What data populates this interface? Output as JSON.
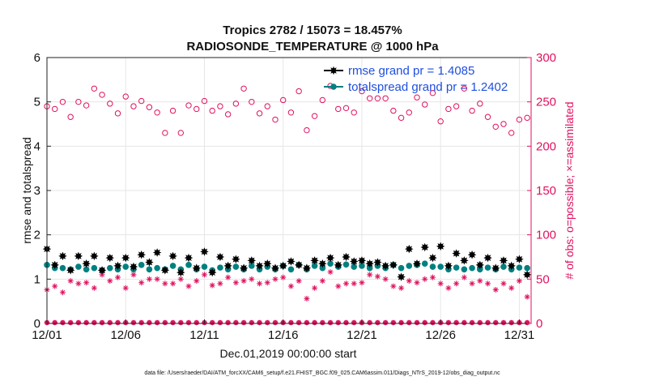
{
  "chart_data": {
    "type": "scatter",
    "title_line1": "Tropics 2782 / 15073 = 18.457%",
    "title_line2": "RADIOSONDE_TEMPERATURE @ 1000 hPa",
    "xlabel": "Dec.01,2019 00:00:00 start",
    "ylabel_left": "rmse and totalspread",
    "ylabel_right": "# of obs: o=possible; ×=assimilated",
    "footer": "data file: /Users/raeder/DAI/ATM_forcXX/CAM6_setup/f.e21.FHIST_BGC.f09_025.CAM6assim.011/Diags_NTrS_2019-12/obs_diag_output.nc",
    "x_ticks": [
      "12/01",
      "12/06",
      "12/11",
      "12/16",
      "12/21",
      "12/26",
      "12/31"
    ],
    "y_left_ticks": [
      "0",
      "1",
      "2",
      "3",
      "4",
      "5",
      "6"
    ],
    "y_right_ticks": [
      "0",
      "50",
      "100",
      "150",
      "200",
      "250",
      "300"
    ],
    "ylim_left": [
      0,
      6
    ],
    "ylim_right": [
      0,
      300
    ],
    "xlim": [
      0,
      30.75
    ],
    "colors": {
      "rmse": "#000000",
      "totalspread": "#008080",
      "obs": "#e0115f",
      "legend_text": "#1f4fe0"
    },
    "legend": [
      {
        "label": "rmse grand pr = 1.4085",
        "series": "rmse"
      },
      {
        "label": "totalspread grand pr = 1.2402",
        "series": "totalspread"
      }
    ],
    "series": [
      {
        "name": "rmse",
        "marker": "star",
        "x": [
          0,
          0.5,
          1,
          1.5,
          2,
          2.5,
          3,
          3.5,
          4,
          4.5,
          5,
          5.5,
          6,
          6.5,
          7,
          7.5,
          8,
          8.5,
          9,
          9.5,
          10,
          10.5,
          11,
          11.5,
          12,
          12.5,
          13,
          13.5,
          14,
          14.5,
          15,
          15.5,
          16,
          16.5,
          17,
          17.5,
          18,
          18.5,
          19,
          19.5,
          20,
          20.5,
          21,
          21.5,
          22,
          22.5,
          23,
          23.5,
          24,
          24.5,
          25,
          25.5,
          26,
          26.5,
          27,
          27.5,
          28,
          28.5,
          29,
          29.5,
          30,
          30.5
        ],
        "values": [
          1.68,
          1.32,
          1.52,
          1.2,
          1.52,
          1.35,
          1.52,
          1.2,
          1.48,
          1.3,
          1.48,
          1.28,
          1.55,
          1.38,
          1.6,
          1.2,
          1.52,
          1.15,
          1.48,
          1.25,
          1.62,
          1.15,
          1.5,
          1.3,
          1.45,
          1.25,
          1.42,
          1.3,
          1.35,
          1.25,
          1.3,
          1.4,
          1.32,
          1.25,
          1.42,
          1.35,
          1.48,
          1.32,
          1.5,
          1.4,
          1.42,
          1.35,
          1.38,
          1.3,
          1.32,
          1.05,
          1.68,
          1.35,
          1.72,
          1.48,
          1.74,
          1.3,
          1.58,
          1.42,
          1.55,
          1.32,
          1.48,
          1.25,
          1.42,
          1.3,
          1.45,
          1.1
        ]
      },
      {
        "name": "totalspread",
        "marker": "dot",
        "x": [
          0,
          0.5,
          1,
          1.5,
          2,
          2.5,
          3,
          3.5,
          4,
          4.5,
          5,
          5.5,
          6,
          6.5,
          7,
          7.5,
          8,
          8.5,
          9,
          9.5,
          10,
          10.5,
          11,
          11.5,
          12,
          12.5,
          13,
          13.5,
          14,
          14.5,
          15,
          15.5,
          16,
          16.5,
          17,
          17.5,
          18,
          18.5,
          19,
          19.5,
          20,
          20.5,
          21,
          21.5,
          22,
          22.5,
          23,
          23.5,
          24,
          24.5,
          25,
          25.5,
          26,
          26.5,
          27,
          27.5,
          28,
          28.5,
          29,
          29.5,
          30,
          30.5
        ],
        "values": [
          1.32,
          1.25,
          1.25,
          1.22,
          1.28,
          1.22,
          1.25,
          1.2,
          1.25,
          1.22,
          1.28,
          1.22,
          1.32,
          1.22,
          1.25,
          1.22,
          1.3,
          1.22,
          1.32,
          1.22,
          1.28,
          1.2,
          1.26,
          1.22,
          1.28,
          1.22,
          1.3,
          1.22,
          1.28,
          1.22,
          1.3,
          1.22,
          1.32,
          1.22,
          1.3,
          1.25,
          1.35,
          1.28,
          1.33,
          1.28,
          1.3,
          1.25,
          1.3,
          1.25,
          1.32,
          1.25,
          1.3,
          1.32,
          1.35,
          1.28,
          1.28,
          1.22,
          1.26,
          1.22,
          1.25,
          1.22,
          1.26,
          1.22,
          1.28,
          1.22,
          1.26,
          1.25
        ]
      },
      {
        "name": "obs_possible",
        "marker": "circle",
        "axis": "right",
        "x": [
          0,
          0.5,
          1,
          1.5,
          2,
          2.5,
          3,
          3.5,
          4,
          4.5,
          5,
          5.5,
          6,
          6.5,
          7,
          7.5,
          8,
          8.5,
          9,
          9.5,
          10,
          10.5,
          11,
          11.5,
          12,
          12.5,
          13,
          13.5,
          14,
          14.5,
          15,
          15.5,
          16,
          16.5,
          17,
          17.5,
          18,
          18.5,
          19,
          19.5,
          20,
          20.5,
          21,
          21.5,
          22,
          22.5,
          23,
          23.5,
          24,
          24.5,
          25,
          25.5,
          26,
          26.5,
          27,
          27.5,
          28,
          28.5,
          29,
          29.5,
          30,
          30.5
        ],
        "values": [
          245,
          242,
          250,
          233,
          250,
          246,
          265,
          258,
          248,
          237,
          256,
          245,
          251,
          244,
          238,
          215,
          240,
          215,
          246,
          242,
          251,
          240,
          245,
          236,
          248,
          265,
          250,
          237,
          245,
          230,
          252,
          238,
          262,
          218,
          234,
          252,
          268,
          242,
          243,
          238,
          262,
          254,
          254,
          254,
          240,
          232,
          238,
          255,
          247,
          260,
          228,
          242,
          245,
          265,
          240,
          248,
          233,
          222,
          225,
          215,
          230,
          232
        ]
      },
      {
        "name": "obs_assimilated",
        "marker": "asterisk",
        "axis": "right",
        "x": [
          0,
          0.5,
          1,
          1.5,
          2,
          2.5,
          3,
          3.5,
          4,
          4.5,
          5,
          5.5,
          6,
          6.5,
          7,
          7.5,
          8,
          8.5,
          9,
          9.5,
          10,
          10.5,
          11,
          11.5,
          12,
          12.5,
          13,
          13.5,
          14,
          14.5,
          15,
          15.5,
          16,
          16.5,
          17,
          17.5,
          18,
          18.5,
          19,
          19.5,
          20,
          20.5,
          21,
          21.5,
          22,
          22.5,
          23,
          23.5,
          24,
          24.5,
          25,
          25.5,
          26,
          26.5,
          27,
          27.5,
          28,
          28.5,
          29,
          29.5,
          30,
          30.5
        ],
        "values": [
          38,
          42,
          35,
          48,
          45,
          46,
          40,
          55,
          48,
          52,
          40,
          55,
          46,
          50,
          50,
          45,
          45,
          50,
          42,
          48,
          55,
          43,
          45,
          52,
          46,
          48,
          50,
          45,
          46,
          50,
          52,
          42,
          48,
          28,
          40,
          48,
          58,
          42,
          45,
          45,
          46,
          55,
          53,
          50,
          42,
          40,
          48,
          46,
          50,
          52,
          45,
          40,
          45,
          52,
          45,
          48,
          45,
          38,
          45,
          40,
          48,
          30
        ]
      },
      {
        "name": "rmse_baseline",
        "marker": "star",
        "x": [
          0,
          0.5,
          1,
          1.5,
          2,
          2.5,
          3,
          3.5,
          4,
          4.5,
          5,
          5.5,
          6,
          6.5,
          7,
          7.5,
          8,
          8.5,
          9,
          9.5,
          10,
          10.5,
          11,
          11.5,
          12,
          12.5,
          13,
          13.5,
          14,
          14.5,
          15,
          15.5,
          16,
          16.5,
          17,
          17.5,
          18,
          18.5,
          19,
          19.5,
          20,
          20.5,
          21,
          21.5,
          22,
          22.5,
          23,
          23.5,
          24,
          24.5,
          25,
          25.5,
          26,
          26.5,
          27,
          27.5,
          28,
          28.5,
          29,
          29.5,
          30,
          30.5
        ],
        "values": [
          0,
          0,
          0,
          0,
          0,
          0,
          0,
          0,
          0,
          0,
          0,
          0,
          0,
          0,
          0,
          0,
          0,
          0,
          0,
          0,
          0,
          0,
          0,
          0,
          0,
          0,
          0,
          0,
          0,
          0,
          0,
          0,
          0,
          0,
          0,
          0,
          0,
          0,
          0,
          0,
          0,
          0,
          0,
          0,
          0,
          0,
          0,
          0,
          0,
          0,
          0,
          0,
          0,
          0,
          0,
          0,
          0,
          0,
          0,
          0,
          0,
          0
        ]
      }
    ]
  }
}
